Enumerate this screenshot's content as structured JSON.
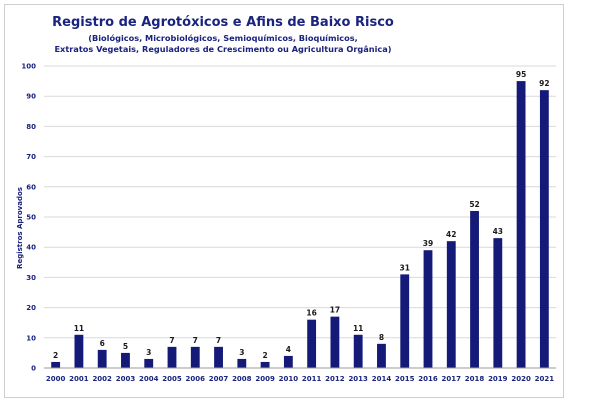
{
  "chart_data": {
    "type": "bar",
    "title": "Registro de Agrotóxicos e Afins de Baixo Risco",
    "subtitle_lines": [
      "(Biológicos, Microbiológicos, Semioquímicos, Bioquímicos,",
      "Extratos Vegetais, Reguladores de Crescimento ou Agricultura Orgânica)"
    ],
    "ylabel": "Registros Aprovados",
    "xlabel": "",
    "ylim": [
      0,
      100
    ],
    "yticks": [
      0,
      10,
      20,
      30,
      40,
      50,
      60,
      70,
      80,
      90,
      100
    ],
    "categories": [
      "2000",
      "2001",
      "2002",
      "2003",
      "2004",
      "2005",
      "2006",
      "2007",
      "2008",
      "2009",
      "2010",
      "2011",
      "2012",
      "2013",
      "2014",
      "2015",
      "2016",
      "2017",
      "2018",
      "2019",
      "2020",
      "2021"
    ],
    "values": [
      2,
      11,
      6,
      5,
      3,
      7,
      7,
      7,
      3,
      2,
      4,
      16,
      17,
      11,
      8,
      31,
      39,
      42,
      52,
      43,
      95,
      92
    ],
    "bar_color": "#151a78",
    "text_color": "#1a237e",
    "grid": true,
    "legend": "none"
  }
}
